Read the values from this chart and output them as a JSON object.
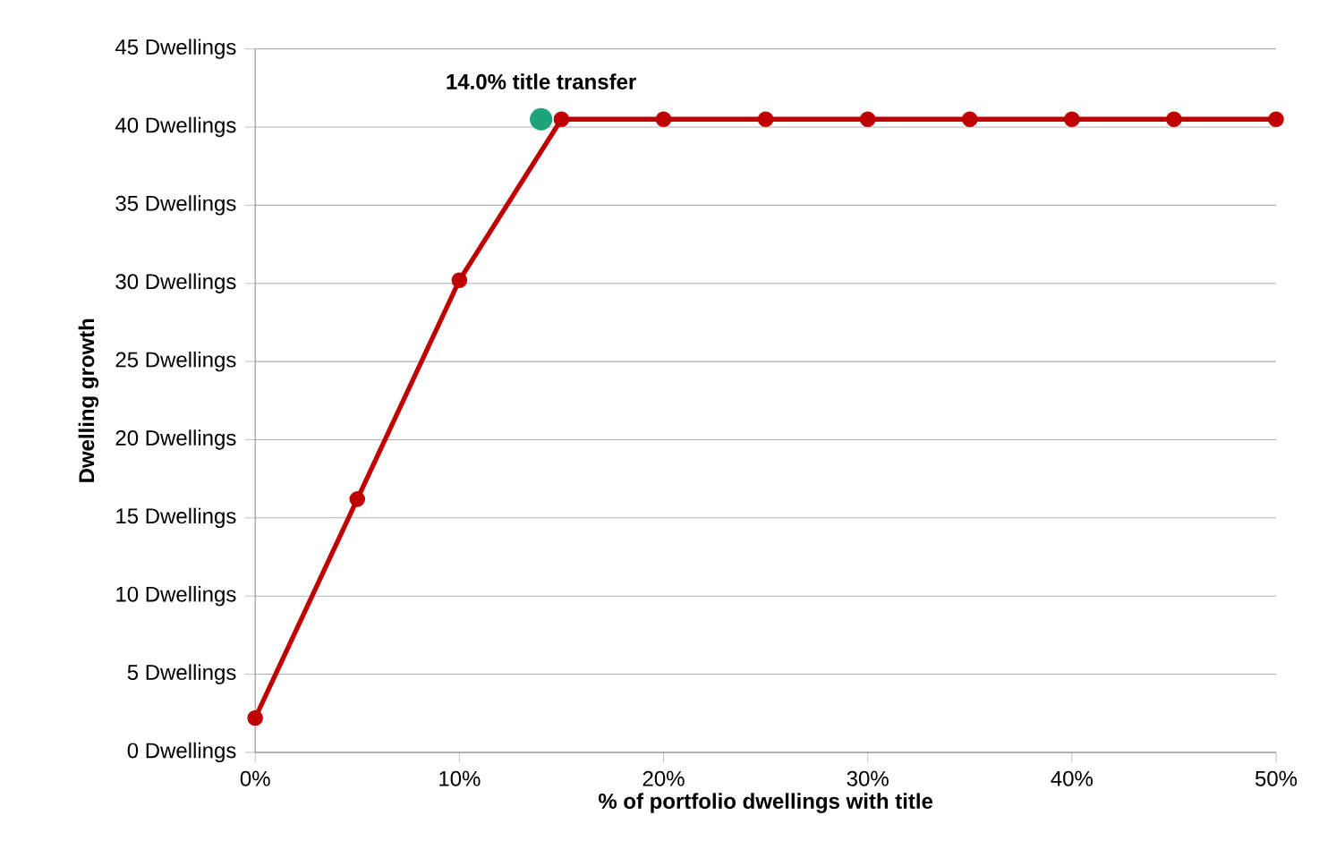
{
  "chart_data": {
    "type": "line",
    "xlabel": "% of portfolio dwellings with title",
    "ylabel": "Dwelling growth",
    "annotations": [
      {
        "text": "14.0% title transfer",
        "x": 14,
        "y": 40.5
      }
    ],
    "series": [
      {
        "color": "#c00000",
        "marker": "circle",
        "x": [
          0,
          5,
          10,
          15,
          20,
          25,
          30,
          35,
          40,
          45,
          50
        ],
        "values": [
          2.2,
          16.2,
          30.2,
          40.5,
          40.5,
          40.5,
          40.5,
          40.5,
          40.5,
          40.5,
          40.5
        ]
      },
      {
        "type": "scatter",
        "color": "#1fa37a",
        "marker": "circle",
        "x": [
          14
        ],
        "values": [
          40.5
        ]
      }
    ],
    "xlim": [
      0,
      50
    ],
    "ylim": [
      0,
      45
    ],
    "xticks": [
      {
        "value": 0,
        "label": "0%"
      },
      {
        "value": 10,
        "label": "10%"
      },
      {
        "value": 20,
        "label": "20%"
      },
      {
        "value": 30,
        "label": "30%"
      },
      {
        "value": 40,
        "label": "40%"
      },
      {
        "value": 50,
        "label": "50%"
      }
    ],
    "yticks": [
      {
        "value": 0,
        "label": "0 Dwellings"
      },
      {
        "value": 5,
        "label": "5 Dwellings"
      },
      {
        "value": 10,
        "label": "10 Dwellings"
      },
      {
        "value": 15,
        "label": "15 Dwellings"
      },
      {
        "value": 20,
        "label": "20 Dwellings"
      },
      {
        "value": 25,
        "label": "25 Dwellings"
      },
      {
        "value": 30,
        "label": "30 Dwellings"
      },
      {
        "value": 35,
        "label": "35 Dwellings"
      },
      {
        "value": 40,
        "label": "40 Dwellings"
      },
      {
        "value": 45,
        "label": "45 Dwellings"
      }
    ],
    "grid": "y"
  }
}
